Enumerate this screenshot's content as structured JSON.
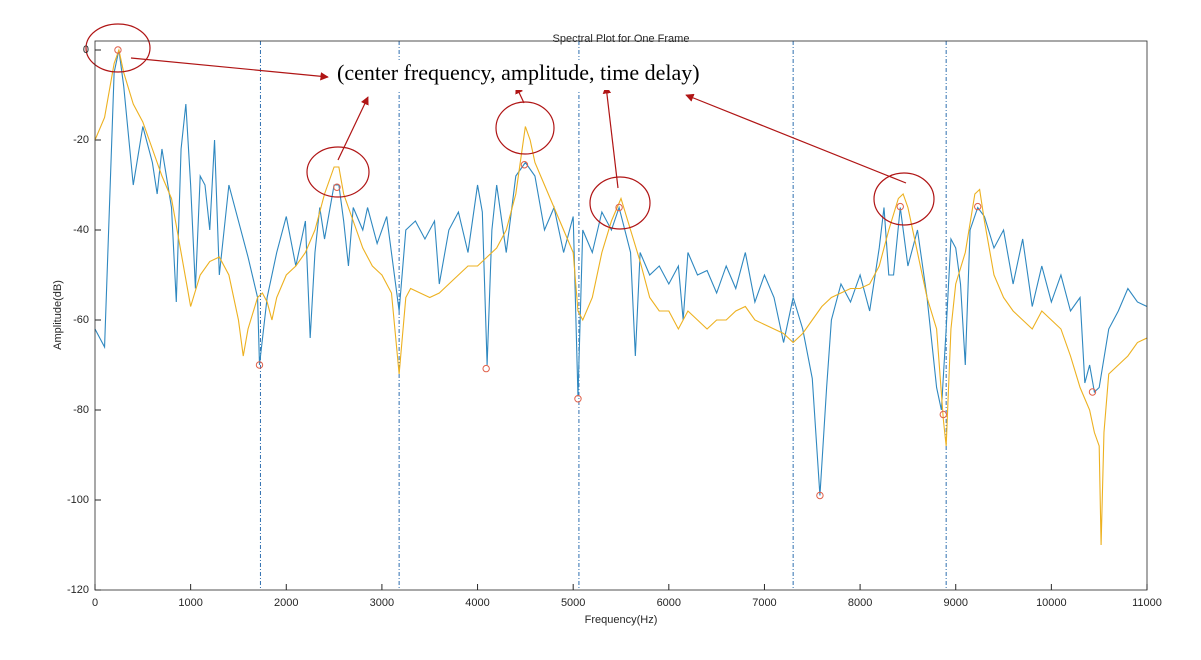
{
  "chart_data": {
    "type": "line",
    "title": "Spectral Plot for One Frame",
    "xlabel": "Frequency(Hz)",
    "ylabel": "Amplitude(dB)",
    "annotation": "(center frequency, amplitude, time delay)",
    "xlim": [
      0,
      11000
    ],
    "ylim": [
      -120,
      2
    ],
    "xticks": [
      0,
      1000,
      2000,
      3000,
      4000,
      5000,
      6000,
      7000,
      8000,
      9000,
      10000,
      11000
    ],
    "yticks": [
      -120,
      -100,
      -80,
      -60,
      -40,
      -20,
      0
    ],
    "series": [
      {
        "color": "#2f88c0",
        "x": [
          0,
          100,
          200,
          250,
          300,
          400,
          500,
          600,
          650,
          700,
          800,
          850,
          900,
          950,
          1000,
          1050,
          1100,
          1150,
          1200,
          1250,
          1300,
          1400,
          1500,
          1600,
          1700,
          1720,
          1800,
          1900,
          2000,
          2100,
          2200,
          2250,
          2300,
          2350,
          2400,
          2500,
          2550,
          2600,
          2650,
          2700,
          2800,
          2850,
          2950,
          3050,
          3180,
          3250,
          3350,
          3450,
          3550,
          3600,
          3700,
          3800,
          3900,
          4000,
          4050,
          4100,
          4150,
          4200,
          4300,
          4400,
          4500,
          4600,
          4700,
          4800,
          4900,
          5000,
          5050,
          5100,
          5200,
          5300,
          5400,
          5480,
          5600,
          5650,
          5700,
          5800,
          5900,
          6000,
          6100,
          6150,
          6200,
          6300,
          6400,
          6500,
          6600,
          6700,
          6800,
          6900,
          7000,
          7100,
          7200,
          7300,
          7400,
          7500,
          7580,
          7650,
          7700,
          7800,
          7900,
          8000,
          8100,
          8200,
          8250,
          8300,
          8350,
          8420,
          8500,
          8600,
          8700,
          8800,
          8850,
          8900,
          8950,
          9000,
          9050,
          9100,
          9150,
          9230,
          9300,
          9400,
          9500,
          9600,
          9700,
          9800,
          9900,
          10000,
          10100,
          10200,
          10300,
          10350,
          10400,
          10450,
          10500,
          10600,
          10700,
          10800,
          10900,
          11000
        ],
        "values": [
          -62,
          -66,
          -5,
          0,
          -8,
          -30,
          -17,
          -25,
          -32,
          -22,
          -35,
          -56,
          -22,
          -12,
          -30,
          -53,
          -28,
          -30,
          -40,
          -20,
          -50,
          -30,
          -38,
          -46,
          -55,
          -70,
          -55,
          -45,
          -37,
          -48,
          -38,
          -64,
          -45,
          -35,
          -42,
          -30,
          -30,
          -38,
          -48,
          -35,
          -40,
          -35,
          -43,
          -37,
          -58,
          -40,
          -38,
          -42,
          -38,
          -52,
          -40,
          -36,
          -45,
          -30,
          -36,
          -70,
          -40,
          -30,
          -45,
          -28,
          -25,
          -28,
          -40,
          -35,
          -45,
          -37,
          -77,
          -40,
          -45,
          -36,
          -40,
          -35,
          -45,
          -68,
          -45,
          -50,
          -48,
          -52,
          -48,
          -60,
          -45,
          -50,
          -49,
          -54,
          -48,
          -53,
          -45,
          -56,
          -50,
          -55,
          -65,
          -55,
          -62,
          -73,
          -99,
          -75,
          -60,
          -52,
          -56,
          -50,
          -58,
          -44,
          -35,
          -50,
          -50,
          -35,
          -48,
          -40,
          -55,
          -75,
          -80,
          -62,
          -42,
          -44,
          -52,
          -70,
          -40,
          -35,
          -37,
          -44,
          -40,
          -52,
          -42,
          -57,
          -48,
          -56,
          -50,
          -58,
          -55,
          -74,
          -70,
          -76,
          -75,
          -62,
          -58,
          -53,
          -56,
          -57
        ]
      },
      {
        "color": "#edb120",
        "x": [
          0,
          100,
          200,
          250,
          300,
          400,
          500,
          600,
          700,
          800,
          900,
          1000,
          1100,
          1200,
          1300,
          1400,
          1500,
          1550,
          1600,
          1700,
          1750,
          1800,
          1850,
          1900,
          2000,
          2100,
          2200,
          2300,
          2400,
          2500,
          2550,
          2600,
          2700,
          2800,
          2900,
          3000,
          3100,
          3180,
          3250,
          3300,
          3400,
          3500,
          3600,
          3700,
          3800,
          3900,
          4000,
          4100,
          4200,
          4300,
          4400,
          4500,
          4550,
          4600,
          4700,
          4800,
          4900,
          5000,
          5050,
          5100,
          5200,
          5300,
          5400,
          5500,
          5600,
          5700,
          5800,
          5900,
          6000,
          6100,
          6200,
          6300,
          6400,
          6500,
          6600,
          6700,
          6800,
          6900,
          7000,
          7100,
          7200,
          7300,
          7400,
          7500,
          7600,
          7700,
          7800,
          7900,
          8000,
          8100,
          8200,
          8300,
          8400,
          8450,
          8500,
          8600,
          8700,
          8800,
          8870,
          8900,
          8950,
          9000,
          9100,
          9200,
          9250,
          9300,
          9400,
          9500,
          9600,
          9700,
          9800,
          9900,
          10000,
          10100,
          10200,
          10300,
          10400,
          10450,
          10500,
          10520,
          10550,
          10600,
          10700,
          10800,
          10900,
          11000
        ],
        "values": [
          -20,
          -15,
          -3,
          0,
          -5,
          -12,
          -16,
          -22,
          -28,
          -33,
          -45,
          -57,
          -50,
          -47,
          -46,
          -50,
          -60,
          -68,
          -62,
          -55,
          -54,
          -56,
          -60,
          -55,
          -50,
          -48,
          -45,
          -40,
          -32,
          -26,
          -26,
          -32,
          -38,
          -44,
          -48,
          -50,
          -54,
          -72,
          -55,
          -53,
          -54,
          -55,
          -54,
          -52,
          -50,
          -48,
          -48,
          -46,
          -44,
          -40,
          -32,
          -17,
          -20,
          -25,
          -30,
          -35,
          -40,
          -45,
          -58,
          -60,
          -55,
          -45,
          -38,
          -33,
          -40,
          -47,
          -55,
          -58,
          -58,
          -62,
          -58,
          -60,
          -62,
          -60,
          -60,
          -58,
          -57,
          -60,
          -61,
          -62,
          -63,
          -65,
          -63,
          -60,
          -57,
          -55,
          -54,
          -53,
          -53,
          -52,
          -48,
          -40,
          -33,
          -32,
          -35,
          -45,
          -55,
          -62,
          -82,
          -88,
          -62,
          -52,
          -45,
          -32,
          -31,
          -38,
          -50,
          -55,
          -58,
          -60,
          -62,
          -58,
          -60,
          -62,
          -68,
          -75,
          -80,
          -85,
          -88,
          -110,
          -85,
          -72,
          -70,
          -68,
          -65,
          -64
        ]
      }
    ],
    "markers": {
      "color": "#e0604a",
      "x": [
        240,
        2530,
        4490,
        5480,
        8420,
        9230,
        1720,
        4090,
        5050,
        7580,
        8870,
        10430
      ],
      "values": [
        0,
        -30.5,
        -25.5,
        -35,
        -34.8,
        -34.8,
        -70,
        -70.8,
        -77.5,
        -99,
        -81,
        -76
      ]
    },
    "vlines": {
      "color": "#2f6fb0",
      "x": [
        1730,
        3180,
        5060,
        7300,
        8900
      ]
    }
  }
}
